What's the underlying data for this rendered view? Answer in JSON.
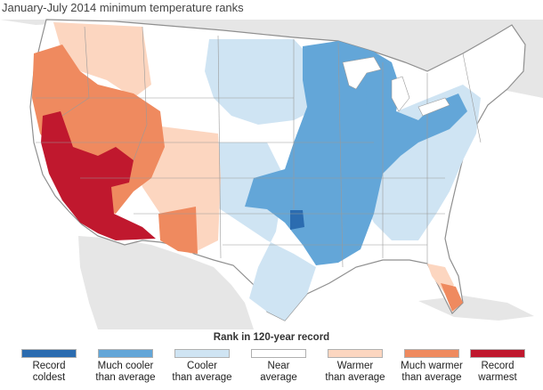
{
  "title": "January-July 2014 minimum temperature ranks",
  "legend": {
    "title": "Rank in 120-year record",
    "items": [
      {
        "label": "Record\ncoldest",
        "color": "#2b6cb0"
      },
      {
        "label": "Much cooler\nthan average",
        "color": "#63a6d8"
      },
      {
        "label": "Cooler\nthan average",
        "color": "#cfe4f3"
      },
      {
        "label": "Near\naverage",
        "color": "#ffffff"
      },
      {
        "label": "Warmer\nthan average",
        "color": "#fcd6c0"
      },
      {
        "label": "Much warmer\nthan average",
        "color": "#ef8a5f"
      },
      {
        "label": "Record\nwarmest",
        "color": "#c0182e"
      }
    ]
  },
  "colors": {
    "land": "#e6e6e6",
    "ocean": "#ffffff",
    "state_border": "#9a9a9a"
  }
}
